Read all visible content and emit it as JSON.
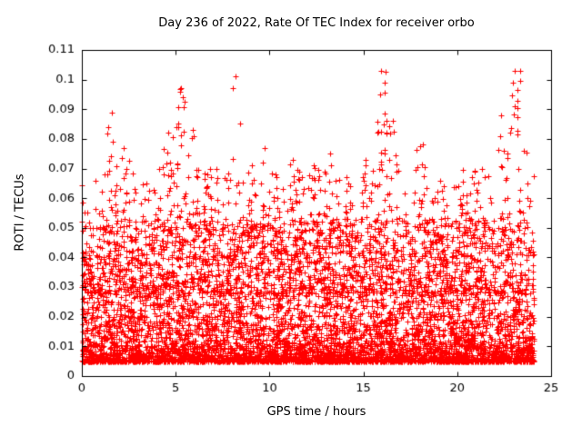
{
  "chart_data": {
    "type": "scatter",
    "title": "Day 236 of 2022, Rate Of TEC Index for receiver orbo",
    "xlabel": "GPS time / hours",
    "ylabel": "ROTI / TECUs",
    "xlim": [
      0,
      25
    ],
    "ylim": [
      0,
      0.11
    ],
    "xticks": [
      0,
      5,
      10,
      15,
      20,
      25
    ],
    "xtick_labels": [
      "0",
      "5",
      "10",
      "15",
      "20",
      "25"
    ],
    "yticks": [
      0,
      0.01,
      0.02,
      0.03,
      0.04,
      0.05,
      0.06,
      0.07,
      0.08,
      0.09,
      0.1,
      0.11
    ],
    "ytick_labels": [
      "0",
      "0.01",
      "0.02",
      "0.03",
      "0.04",
      "0.05",
      "0.06",
      "0.07",
      "0.08",
      "0.09",
      "0.1",
      "0.11"
    ],
    "grid": false,
    "legend": "none",
    "marker": "plus",
    "marker_color": "#ff0000",
    "axis_color": "#000000",
    "background": "#ffffff",
    "x_data_range": [
      0,
      24.1
    ],
    "synthesis": {
      "seed": 20220236,
      "base": {
        "n": 6200,
        "y_min": 0.005,
        "y_span": 0.048,
        "exp": 2.6
      },
      "mid": {
        "n": 900,
        "y_min": 0.028,
        "y_span": 0.042,
        "exp": 2.0
      },
      "clusters": [
        {
          "x": 1.6,
          "ymax": 0.089,
          "n": 14
        },
        {
          "x": 2.3,
          "ymax": 0.077,
          "n": 10
        },
        {
          "x": 3.4,
          "ymax": 0.065,
          "n": 8
        },
        {
          "x": 4.6,
          "ymax": 0.082,
          "n": 16
        },
        {
          "x": 5.3,
          "ymax": 0.097,
          "n": 20
        },
        {
          "x": 5.9,
          "ymax": 0.083,
          "n": 12
        },
        {
          "x": 6.8,
          "ymax": 0.07,
          "n": 8
        },
        {
          "x": 8.2,
          "ymax": 0.101,
          "n": 6
        },
        {
          "x": 9.0,
          "ymax": 0.071,
          "n": 12
        },
        {
          "x": 9.8,
          "ymax": 0.077,
          "n": 10
        },
        {
          "x": 10.4,
          "ymax": 0.068,
          "n": 8
        },
        {
          "x": 11.3,
          "ymax": 0.073,
          "n": 8
        },
        {
          "x": 12.4,
          "ymax": 0.071,
          "n": 10
        },
        {
          "x": 13.2,
          "ymax": 0.075,
          "n": 10
        },
        {
          "x": 14.2,
          "ymax": 0.065,
          "n": 8
        },
        {
          "x": 15.2,
          "ymax": 0.073,
          "n": 8
        },
        {
          "x": 16.0,
          "ymax": 0.103,
          "n": 22
        },
        {
          "x": 16.5,
          "ymax": 0.086,
          "n": 10
        },
        {
          "x": 18.1,
          "ymax": 0.078,
          "n": 12
        },
        {
          "x": 19.2,
          "ymax": 0.066,
          "n": 8
        },
        {
          "x": 20.3,
          "ymax": 0.061,
          "n": 8
        },
        {
          "x": 21.2,
          "ymax": 0.07,
          "n": 10
        },
        {
          "x": 22.4,
          "ymax": 0.088,
          "n": 14
        },
        {
          "x": 23.1,
          "ymax": 0.103,
          "n": 16
        },
        {
          "x": 23.6,
          "ymax": 0.076,
          "n": 8
        }
      ]
    }
  }
}
